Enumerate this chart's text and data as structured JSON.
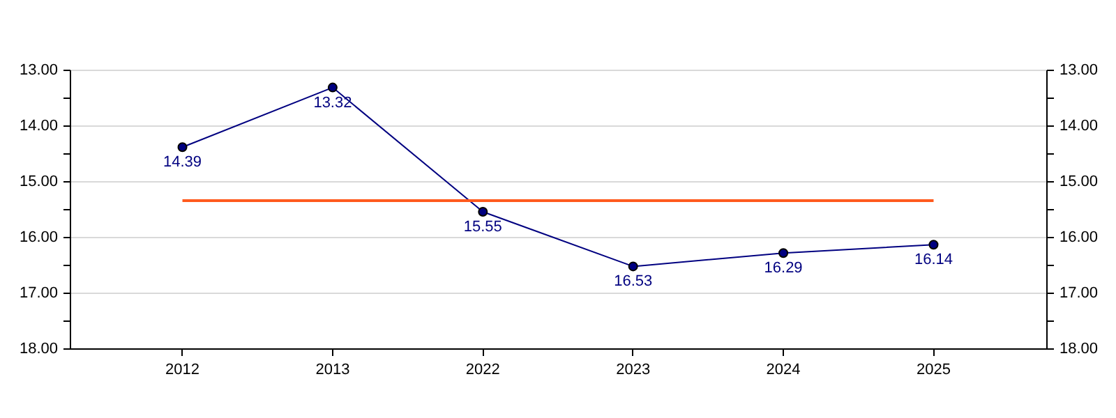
{
  "chart_data": {
    "type": "line",
    "categories": [
      "2012",
      "2013",
      "2022",
      "2023",
      "2024",
      "2025"
    ],
    "series": [
      {
        "color": "#000080",
        "values": [
          14.39,
          13.32,
          15.55,
          16.53,
          16.29,
          16.14
        ]
      }
    ],
    "ylim": [
      18,
      13
    ],
    "yticks": [
      {
        "value": 13,
        "label": "13.00"
      },
      {
        "value": 13.5,
        "label": null
      },
      {
        "value": 14,
        "label": "14.00"
      },
      {
        "value": 14.5,
        "label": null
      },
      {
        "value": 15,
        "label": "15.00"
      },
      {
        "value": 15.5,
        "label": null
      },
      {
        "value": 16,
        "label": "16.00"
      },
      {
        "value": 16.5,
        "label": null
      },
      {
        "value": 17,
        "label": "17.00"
      },
      {
        "value": 17.5,
        "label": null
      },
      {
        "value": 18,
        "label": "18.00"
      }
    ],
    "y2lim": [
      18,
      13
    ],
    "y2ticks": [
      {
        "value": 13,
        "label": "13.00"
      },
      {
        "value": 13.5,
        "label": null
      },
      {
        "value": 14,
        "label": "14.00"
      },
      {
        "value": 14.5,
        "label": null
      },
      {
        "value": 15,
        "label": "15.00"
      },
      {
        "value": 15.5,
        "label": null
      },
      {
        "value": 16,
        "label": "16.00"
      },
      {
        "value": 16.5,
        "label": null
      },
      {
        "value": 17,
        "label": "17.00"
      },
      {
        "value": 17.5,
        "label": null
      },
      {
        "value": 18,
        "label": "18.00"
      }
    ],
    "grid": "y",
    "marker": "circle",
    "data_labels": true,
    "ref_lines": [
      {
        "axis": "y",
        "value": 15.35,
        "color": "#ff5a1e"
      }
    ]
  }
}
